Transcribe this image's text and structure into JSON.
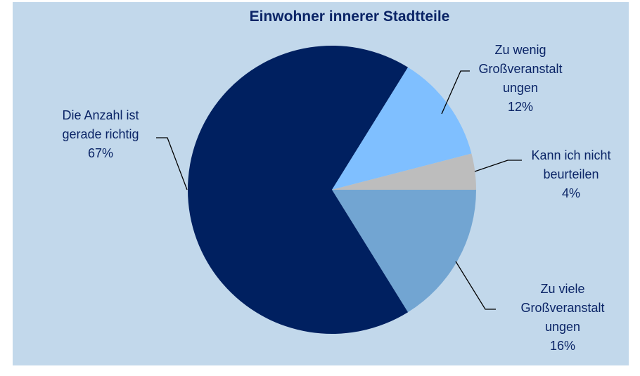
{
  "chart_data": {
    "type": "pie",
    "title": "Einwohner innerer Stadtteile",
    "categories": [
      "Zu viele\nGroßveranstalt\nungen",
      "Die Anzahl ist\ngerade richtig",
      "Zu wenig\nGroßveranstalt\nungen",
      "Kann ich nicht\nbeurteilen"
    ],
    "values": [
      16,
      67,
      12,
      4
    ],
    "value_labels": [
      "16%",
      "67%",
      "12%",
      "4%"
    ],
    "colors": [
      "#72a5d2",
      "#002060",
      "#7fbfff",
      "#bdbdbd"
    ]
  }
}
